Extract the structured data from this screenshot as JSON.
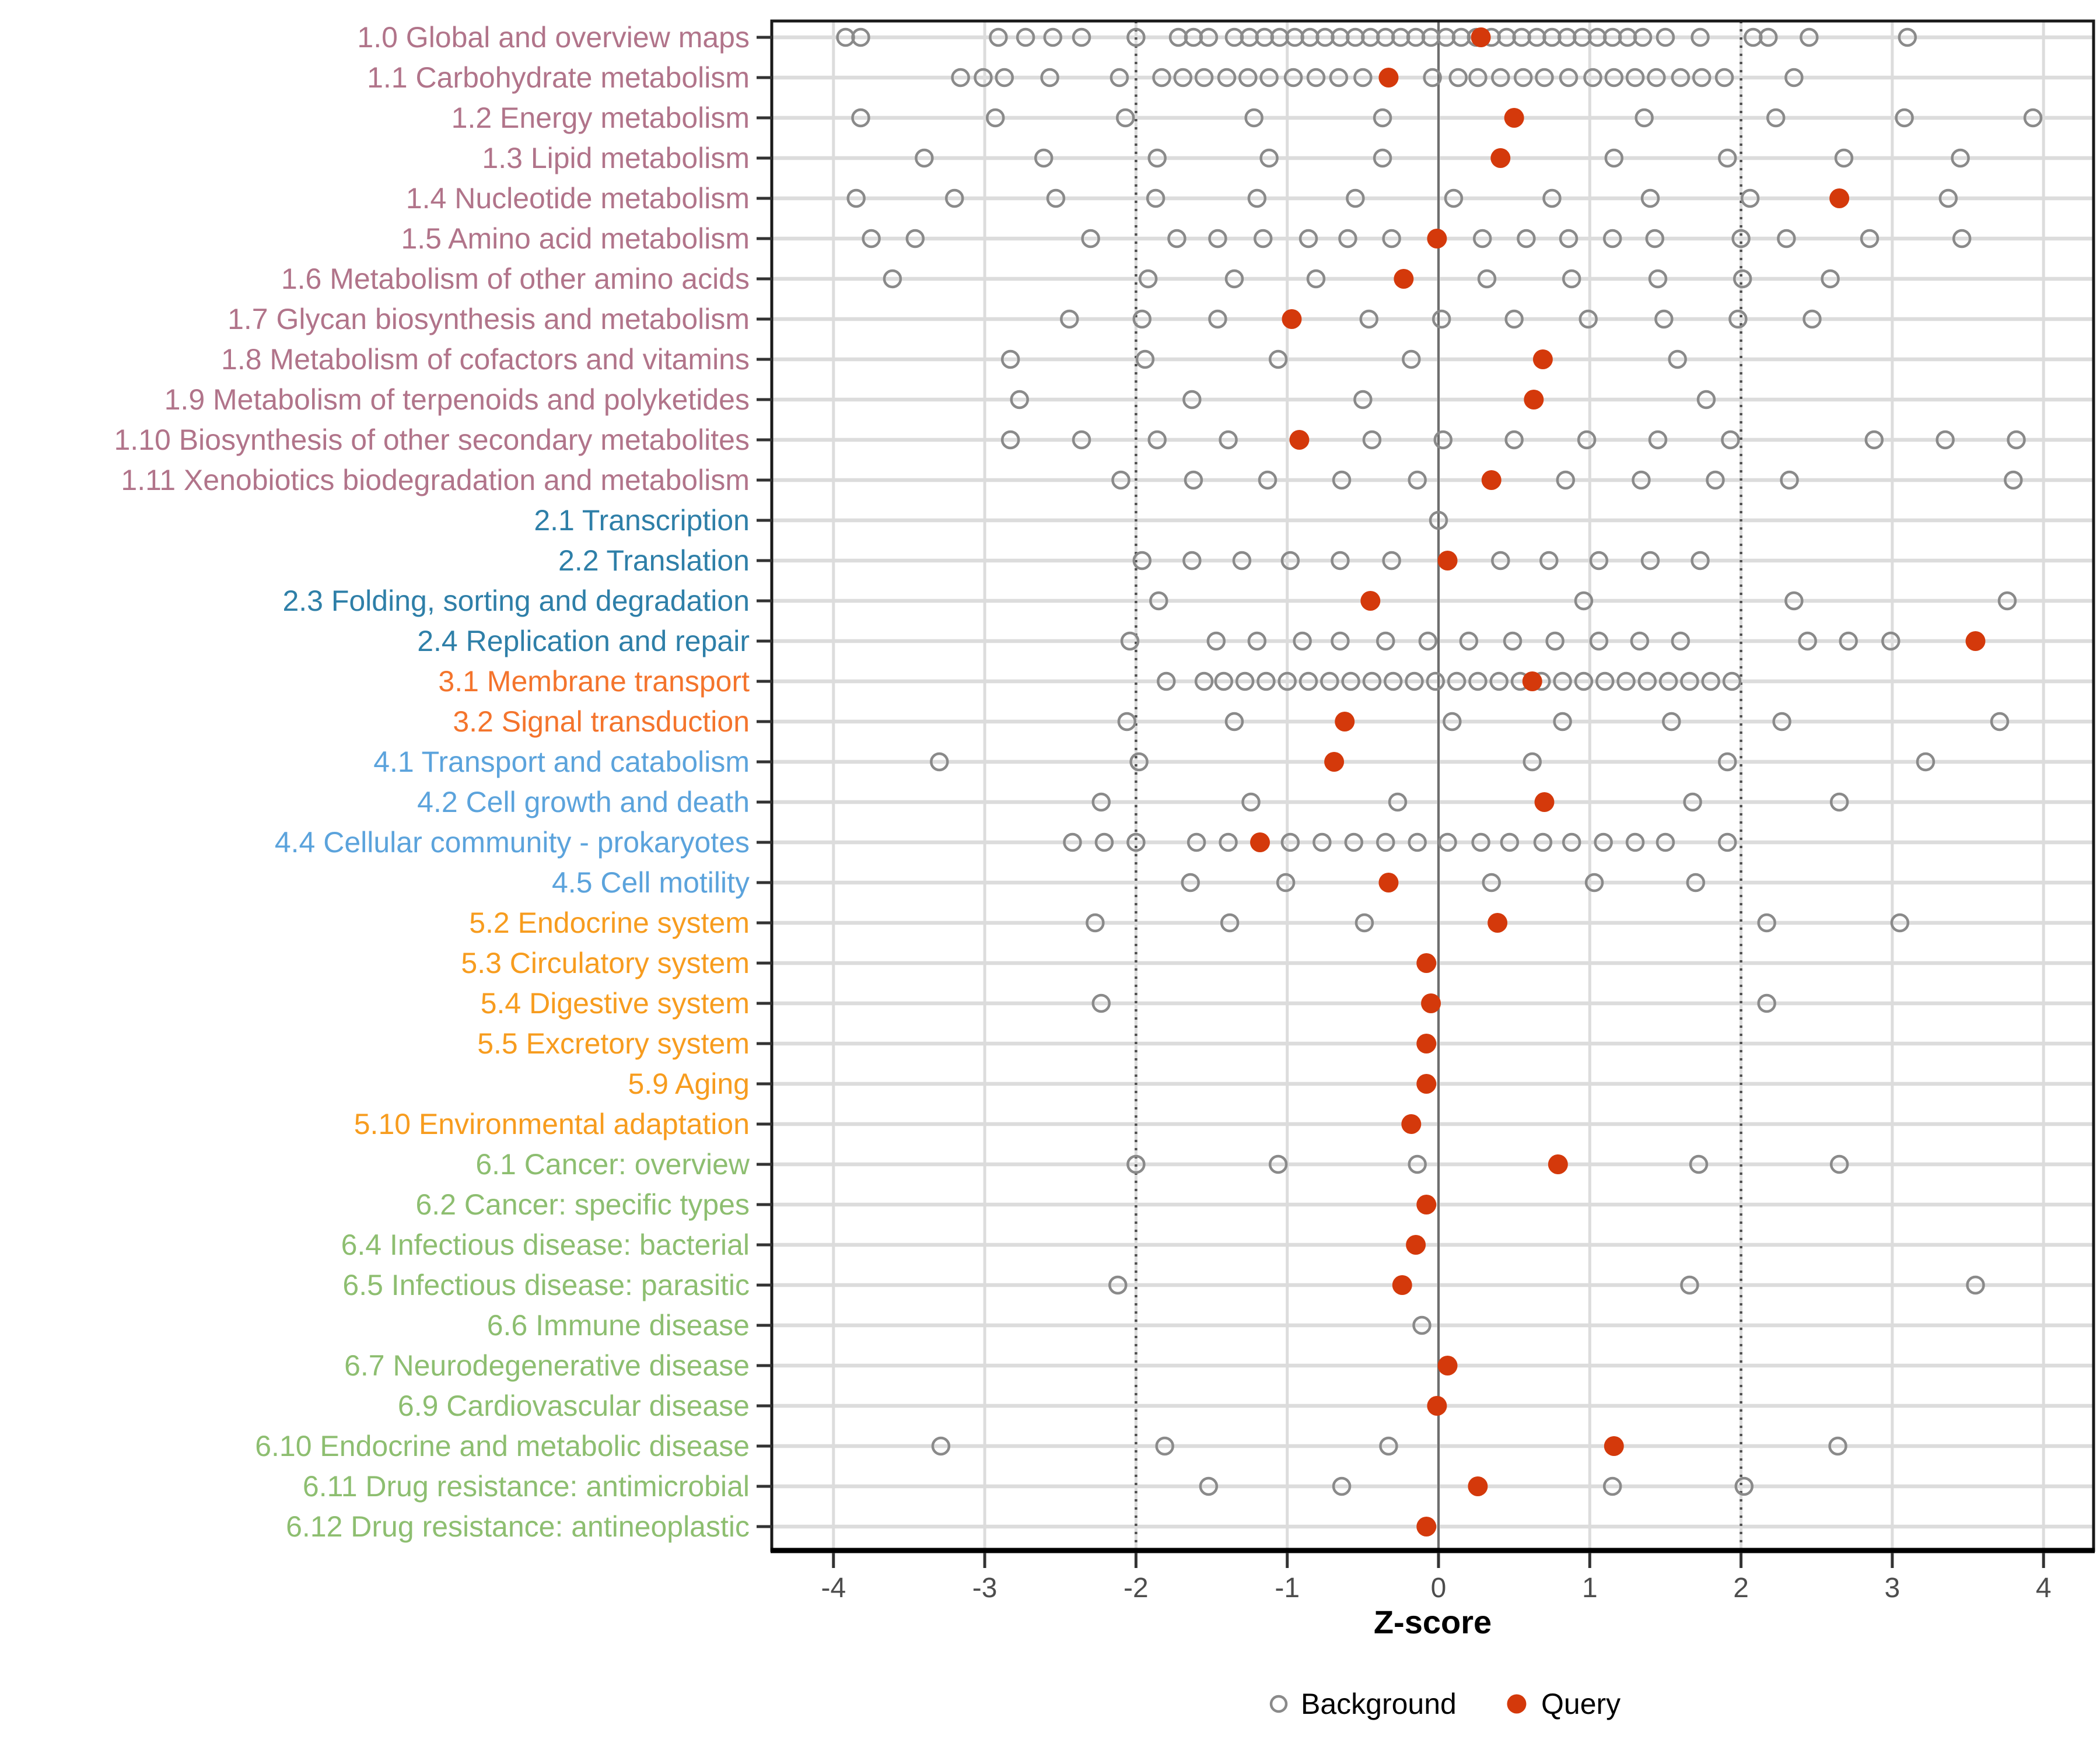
{
  "chart_data": {
    "type": "scatter",
    "title": "",
    "xlabel": "Z-score",
    "ylabel": "",
    "x_ticks": [
      -4,
      -3,
      -2,
      -1,
      0,
      1,
      2,
      3,
      4
    ],
    "xlim": [
      -4.4,
      4.35
    ],
    "grid": true,
    "reference_lines": {
      "solid": [
        0
      ],
      "dotted": [
        -2,
        2
      ]
    },
    "legend": {
      "position": "bottom",
      "background_label": "Background",
      "query_label": "Query"
    },
    "colors": {
      "query": "#D4390B",
      "background_stroke": "#8A8A8A",
      "grid": "#DCDCDC",
      "zero_line": "#6E6E6E",
      "dotted_line": "#4F4F4F",
      "axis_text": "#4D4D4D",
      "panel_border": "#1A1A1A",
      "groups": {
        "1": "#B1748A",
        "2": "#2E7FA8",
        "3": "#F4742C",
        "4": "#5BA3DC",
        "5": "#F79C1E",
        "6": "#8DBE70"
      }
    },
    "rows": [
      {
        "label": "1.0 Global and overview maps",
        "group": "1",
        "query": 0.28,
        "background": [
          -3.92,
          -3.82,
          -2.91,
          -2.73,
          -2.55,
          -2.36,
          -2.0,
          -1.72,
          -1.62,
          -1.52,
          -1.35,
          -1.25,
          -1.15,
          -1.05,
          -0.95,
          -0.85,
          -0.75,
          -0.65,
          -0.55,
          -0.45,
          -0.35,
          -0.25,
          -0.15,
          -0.05,
          0.05,
          0.15,
          0.25,
          0.35,
          0.45,
          0.55,
          0.65,
          0.75,
          0.85,
          0.95,
          1.05,
          1.15,
          1.25,
          1.35,
          1.5,
          1.73,
          2.08,
          2.18,
          2.45,
          3.1
        ]
      },
      {
        "label": "1.1 Carbohydrate metabolism",
        "group": "1",
        "query": -0.33,
        "background": [
          -3.16,
          -3.01,
          -2.87,
          -2.57,
          -2.11,
          -1.83,
          -1.69,
          -1.55,
          -1.4,
          -1.26,
          -1.12,
          -0.96,
          -0.81,
          -0.66,
          -0.5,
          -0.04,
          0.13,
          0.26,
          0.41,
          0.56,
          0.7,
          0.86,
          1.02,
          1.16,
          1.3,
          1.44,
          1.6,
          1.74,
          1.89,
          2.35
        ]
      },
      {
        "label": "1.2 Energy metabolism",
        "group": "1",
        "query": 0.5,
        "background": [
          -3.82,
          -2.93,
          -2.07,
          -1.22,
          -0.37,
          1.36,
          2.23,
          3.08,
          3.93
        ]
      },
      {
        "label": "1.3 Lipid metabolism",
        "group": "1",
        "query": 0.41,
        "background": [
          -3.4,
          -2.61,
          -1.86,
          -1.12,
          -0.37,
          1.16,
          1.91,
          2.68,
          3.45
        ]
      },
      {
        "label": "1.4 Nucleotide metabolism",
        "group": "1",
        "query": 2.65,
        "background": [
          -3.85,
          -3.2,
          -2.53,
          -1.87,
          -1.2,
          -0.55,
          0.1,
          0.75,
          1.4,
          2.06,
          3.37
        ]
      },
      {
        "label": "1.5 Amino acid metabolism",
        "group": "1",
        "query": -0.01,
        "background": [
          -3.75,
          -3.46,
          -2.3,
          -1.73,
          -1.46,
          -1.16,
          -0.86,
          -0.6,
          -0.31,
          0.29,
          0.58,
          0.86,
          1.15,
          1.43,
          2.0,
          2.3,
          2.85,
          3.46
        ]
      },
      {
        "label": "1.6 Metabolism of other amino acids",
        "group": "1",
        "query": -0.23,
        "background": [
          -3.61,
          -1.92,
          -1.35,
          -0.81,
          0.32,
          0.88,
          1.45,
          2.01,
          2.59
        ]
      },
      {
        "label": "1.7 Glycan biosynthesis and metabolism",
        "group": "1",
        "query": -0.97,
        "background": [
          -2.44,
          -1.96,
          -1.46,
          -0.46,
          0.02,
          0.5,
          0.99,
          1.49,
          1.98,
          2.47
        ]
      },
      {
        "label": "1.8 Metabolism of cofactors and vitamins",
        "group": "1",
        "query": 0.69,
        "background": [
          -2.83,
          -1.94,
          -1.06,
          -0.18,
          1.58
        ]
      },
      {
        "label": "1.9 Metabolism of terpenoids and polyketides",
        "group": "1",
        "query": 0.63,
        "background": [
          -2.77,
          -1.63,
          -0.5,
          1.77
        ]
      },
      {
        "label": "1.10 Biosynthesis of other secondary metabolites",
        "group": "1",
        "query": -0.92,
        "background": [
          -2.83,
          -2.36,
          -1.86,
          -1.39,
          -0.44,
          0.03,
          0.5,
          0.98,
          1.45,
          1.93,
          2.88,
          3.35,
          3.82
        ]
      },
      {
        "label": "1.11 Xenobiotics biodegradation and metabolism",
        "group": "1",
        "query": 0.35,
        "background": [
          -2.1,
          -1.62,
          -1.13,
          -0.64,
          -0.14,
          0.84,
          1.34,
          1.83,
          2.32,
          3.8
        ]
      },
      {
        "label": "2.1 Transcription",
        "group": "2",
        "query": null,
        "background": [
          0.0
        ]
      },
      {
        "label": "2.2 Translation",
        "group": "2",
        "query": 0.06,
        "background": [
          -1.96,
          -1.63,
          -1.3,
          -0.98,
          -0.65,
          -0.31,
          0.41,
          0.73,
          1.06,
          1.4,
          1.73
        ]
      },
      {
        "label": "2.3 Folding, sorting and degradation",
        "group": "2",
        "query": -0.45,
        "background": [
          -1.85,
          0.96,
          2.35,
          3.76
        ]
      },
      {
        "label": "2.4 Replication and repair",
        "group": "2",
        "query": 3.55,
        "background": [
          -2.04,
          -1.47,
          -1.2,
          -0.9,
          -0.65,
          -0.35,
          -0.07,
          0.2,
          0.49,
          0.77,
          1.06,
          1.33,
          1.6,
          2.44,
          2.71,
          2.99
        ]
      },
      {
        "label": "3.1 Membrane transport",
        "group": "3",
        "query": 0.62,
        "background": [
          -1.8,
          -1.55,
          -1.42,
          -1.28,
          -1.14,
          -1.0,
          -0.86,
          -0.72,
          -0.58,
          -0.44,
          -0.3,
          -0.16,
          -0.02,
          0.12,
          0.26,
          0.4,
          0.54,
          0.68,
          0.82,
          0.96,
          1.1,
          1.24,
          1.38,
          1.52,
          1.66,
          1.8,
          1.94
        ]
      },
      {
        "label": "3.2 Signal transduction",
        "group": "3",
        "query": -0.62,
        "background": [
          -2.06,
          -1.35,
          0.09,
          0.82,
          1.54,
          2.27,
          3.71
        ]
      },
      {
        "label": "4.1 Transport and catabolism",
        "group": "4",
        "query": -0.69,
        "background": [
          -3.3,
          -1.98,
          0.62,
          1.91,
          3.22
        ]
      },
      {
        "label": "4.2 Cell growth and death",
        "group": "4",
        "query": 0.7,
        "background": [
          -2.23,
          -1.24,
          -0.27,
          1.68,
          2.65
        ]
      },
      {
        "label": "4.4 Cellular community - prokaryotes",
        "group": "4",
        "query": -1.18,
        "background": [
          -2.42,
          -2.21,
          -2.0,
          -1.6,
          -1.39,
          -0.98,
          -0.77,
          -0.56,
          -0.35,
          -0.14,
          0.06,
          0.28,
          0.47,
          0.69,
          0.88,
          1.09,
          1.3,
          1.5,
          1.91
        ]
      },
      {
        "label": "4.5 Cell motility",
        "group": "4",
        "query": -0.33,
        "background": [
          -1.64,
          -1.01,
          0.35,
          1.03,
          1.7
        ]
      },
      {
        "label": "5.2 Endocrine system",
        "group": "5",
        "query": 0.39,
        "background": [
          -2.27,
          -1.38,
          -0.49,
          2.17,
          3.05
        ]
      },
      {
        "label": "5.3 Circulatory system",
        "group": "5",
        "query": -0.08,
        "background": []
      },
      {
        "label": "5.4 Digestive system",
        "group": "5",
        "query": -0.05,
        "background": [
          -2.23,
          2.17
        ]
      },
      {
        "label": "5.5 Excretory system",
        "group": "5",
        "query": -0.08,
        "background": []
      },
      {
        "label": "5.9 Aging",
        "group": "5",
        "query": -0.08,
        "background": []
      },
      {
        "label": "5.10 Environmental adaptation",
        "group": "5",
        "query": -0.18,
        "background": []
      },
      {
        "label": "6.1 Cancer: overview",
        "group": "6",
        "query": 0.79,
        "background": [
          -2.0,
          -1.06,
          -0.14,
          1.72,
          2.65
        ]
      },
      {
        "label": "6.2 Cancer: specific types",
        "group": "6",
        "query": -0.08,
        "background": []
      },
      {
        "label": "6.4 Infectious disease: bacterial",
        "group": "6",
        "query": -0.15,
        "background": []
      },
      {
        "label": "6.5 Infectious disease: parasitic",
        "group": "6",
        "query": -0.24,
        "background": [
          -2.12,
          1.66,
          3.55
        ]
      },
      {
        "label": "6.6 Immune disease",
        "group": "6",
        "query": null,
        "background": [
          -0.11
        ]
      },
      {
        "label": "6.7 Neurodegenerative disease",
        "group": "6",
        "query": 0.06,
        "background": []
      },
      {
        "label": "6.9 Cardiovascular disease",
        "group": "6",
        "query": -0.01,
        "background": []
      },
      {
        "label": "6.10 Endocrine and metabolic disease",
        "group": "6",
        "query": 1.16,
        "background": [
          -3.29,
          -1.81,
          -0.33,
          2.64
        ]
      },
      {
        "label": "6.11 Drug resistance: antimicrobial",
        "group": "6",
        "query": 0.26,
        "background": [
          -1.52,
          -0.64,
          1.15,
          2.02
        ]
      },
      {
        "label": "6.12 Drug resistance: antineoplastic",
        "group": "6",
        "query": -0.08,
        "background": []
      }
    ]
  }
}
